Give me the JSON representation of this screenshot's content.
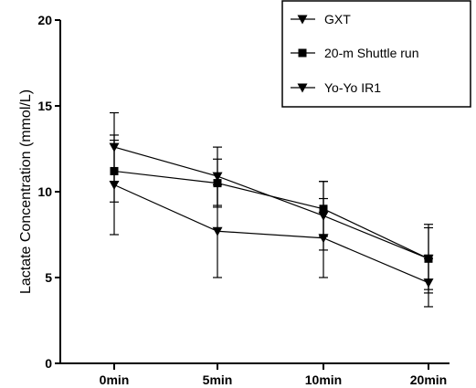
{
  "chart_data": {
    "type": "line",
    "title": "",
    "xlabel": "",
    "ylabel": "Lactate Concentration (mmol/L)",
    "categories": [
      "0min",
      "5min",
      "10min",
      "20min"
    ],
    "ylim": [
      0,
      20
    ],
    "yticks": [
      0,
      5,
      10,
      15,
      20
    ],
    "grid": false,
    "legend_position": "top-right",
    "series": [
      {
        "name": "GXT",
        "marker": "triangle-down",
        "color": "#000000",
        "values": [
          10.4,
          7.7,
          7.3,
          4.7
        ],
        "error": [
          2.9,
          2.7,
          2.3,
          1.4
        ]
      },
      {
        "name": "20-m Shuttle run",
        "marker": "square",
        "color": "#000000",
        "values": [
          11.2,
          10.5,
          9.0,
          6.1
        ],
        "error": [
          1.8,
          1.4,
          1.6,
          1.8
        ]
      },
      {
        "name": "Yo-Yo IR1",
        "marker": "triangle-down",
        "color": "#000000",
        "values": [
          12.6,
          10.9,
          8.6,
          6.1
        ],
        "error": [
          2.0,
          1.7,
          2.0,
          2.0
        ]
      }
    ]
  }
}
